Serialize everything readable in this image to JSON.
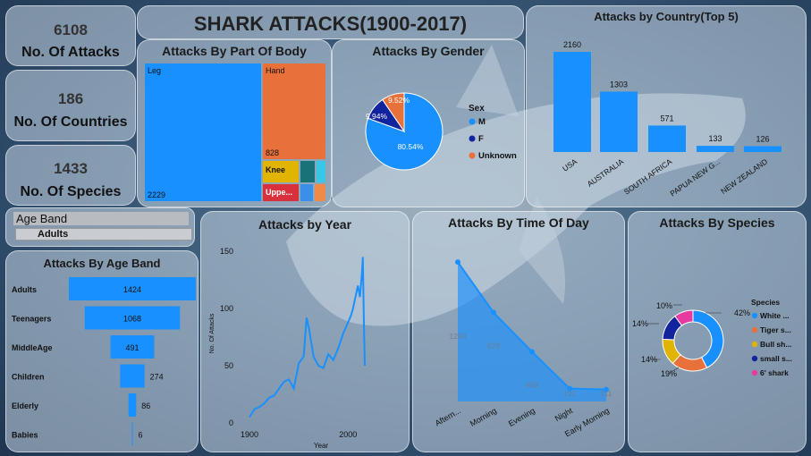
{
  "title": "SHARK ATTACKS(1900-2017)",
  "kpis": [
    {
      "value": "6108",
      "label": "No. Of Attacks"
    },
    {
      "value": "186",
      "label": "No. Of Countries"
    },
    {
      "value": "1433",
      "label": "No. Of Species"
    }
  ],
  "slicer": {
    "title": "Age Band",
    "selected": "Adults"
  },
  "colors": {
    "blue": "#1890ff",
    "orange": "#e8703a",
    "navy": "#12239e",
    "yellow": "#e0b400",
    "pink": "#e73aa0"
  },
  "chart_data": [
    {
      "id": "body_part",
      "type": "treemap",
      "title": "Attacks By Part Of Body",
      "items": [
        {
          "label": "Leg",
          "value": 2229,
          "value_label": "2229"
        },
        {
          "label": "Hand",
          "value": 828,
          "value_label": "828"
        },
        {
          "label": "Knee",
          "value": null
        },
        {
          "label": "Uppe...",
          "value": null
        }
      ]
    },
    {
      "id": "gender",
      "type": "pie",
      "title": "Attacks By Gender",
      "legend_title": "Sex",
      "labels": [
        "M",
        "F",
        "Unknown"
      ],
      "values": [
        80.54,
        9.94,
        9.52
      ],
      "value_labels": [
        "80.54%",
        "9.94%",
        "9.52%"
      ]
    },
    {
      "id": "country",
      "type": "bar",
      "title": "Attacks by Country(Top 5)",
      "categories": [
        "USA",
        "AUSTRALIA",
        "SOUTH AFRICA",
        "PAPUA NEW G...",
        "NEW ZEALAND"
      ],
      "values": [
        2160,
        1303,
        571,
        133,
        126
      ]
    },
    {
      "id": "age_band",
      "type": "bar",
      "orientation": "horizontal",
      "title": "Attacks By Age Band",
      "categories": [
        "Adults",
        "Teenagers",
        "MiddleAge",
        "Children",
        "Elderly",
        "Babies"
      ],
      "values": [
        1424,
        1068,
        491,
        274,
        86,
        6
      ]
    },
    {
      "id": "year",
      "type": "line",
      "title": "Attacks by Year",
      "xlabel": "Year",
      "ylabel": "No. Of Attacks",
      "xticks": [
        "1900",
        "2000"
      ],
      "yticks": [
        "0",
        "50",
        "100",
        "150"
      ],
      "xlim": [
        1900,
        2017
      ],
      "ylim": [
        0,
        150
      ],
      "x": [
        1900,
        1905,
        1910,
        1915,
        1920,
        1925,
        1930,
        1935,
        1940,
        1945,
        1950,
        1955,
        1958,
        1960,
        1965,
        1970,
        1975,
        1980,
        1985,
        1990,
        1995,
        2000,
        2003,
        2005,
        2008,
        2010,
        2012,
        2014,
        2015,
        2016,
        2017
      ],
      "y": [
        5,
        12,
        14,
        17,
        22,
        24,
        30,
        36,
        38,
        30,
        52,
        58,
        92,
        84,
        58,
        50,
        48,
        60,
        55,
        65,
        78,
        88,
        94,
        100,
        112,
        120,
        110,
        130,
        145,
        90,
        50
      ]
    },
    {
      "id": "time_of_day",
      "type": "area",
      "title": "Attacks By Time Of Day",
      "categories": [
        "Aftern...",
        "Morning",
        "Evening",
        "Night",
        "Early Morning"
      ],
      "values": [
        1299,
        829,
        463,
        121,
        111
      ]
    },
    {
      "id": "species",
      "type": "donut",
      "title": "Attacks By Species",
      "legend_title": "Species",
      "labels": [
        "White ...",
        "Tiger s...",
        "Bull sh...",
        "small s...",
        "6' shark"
      ],
      "values": [
        42,
        19,
        14,
        14,
        10
      ],
      "value_labels": [
        "42%",
        "19%",
        "14%",
        "14%",
        "10%"
      ]
    }
  ]
}
